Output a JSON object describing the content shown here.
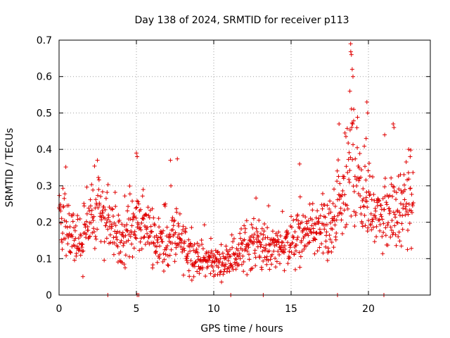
{
  "chart_data": {
    "type": "scatter",
    "title": "Day 138 of 2024, SRMTID for receiver p113",
    "xlabel": "GPS time / hours",
    "ylabel": "SRMTID / TECUs",
    "xlim": [
      0,
      24
    ],
    "ylim": [
      0,
      0.7
    ],
    "xticks": [
      0,
      5,
      10,
      15,
      20
    ],
    "xtick_labels": [
      "0",
      "5",
      "10",
      "15",
      "20"
    ],
    "yticks": [
      0,
      0.1,
      0.2,
      0.3,
      0.4,
      0.5,
      0.6,
      0.7
    ],
    "ytick_labels": [
      "0",
      "0.1",
      "0.2",
      "0.3",
      "0.4",
      "0.5",
      "0.6",
      "0.7"
    ],
    "grid": true,
    "marker": "+",
    "color": "#e00000",
    "point_count": 1100,
    "sample_points_at_zero_x": [
      3.15,
      5.05,
      5.15,
      11.1,
      13.2,
      18.0,
      21.0
    ],
    "trend": {
      "x": [
        0,
        0.5,
        1,
        1.5,
        2,
        2.5,
        3,
        3.5,
        4,
        4.5,
        5,
        5.5,
        6,
        6.5,
        7,
        7.5,
        8,
        8.5,
        9,
        9.5,
        10,
        10.5,
        11,
        11.5,
        12,
        12.5,
        13,
        13.5,
        14,
        14.5,
        15,
        15.5,
        16,
        16.5,
        17,
        17.5,
        18,
        18.5,
        18.9,
        19.3,
        19.7,
        20,
        20.5,
        21,
        21.5,
        22,
        22.5,
        22.9
      ],
      "y": [
        0.22,
        0.19,
        0.15,
        0.14,
        0.2,
        0.22,
        0.22,
        0.18,
        0.14,
        0.16,
        0.19,
        0.2,
        0.17,
        0.15,
        0.14,
        0.16,
        0.14,
        0.11,
        0.1,
        0.1,
        0.09,
        0.09,
        0.1,
        0.11,
        0.13,
        0.15,
        0.13,
        0.12,
        0.13,
        0.14,
        0.14,
        0.15,
        0.17,
        0.18,
        0.17,
        0.16,
        0.22,
        0.28,
        0.38,
        0.33,
        0.26,
        0.24,
        0.22,
        0.22,
        0.23,
        0.22,
        0.24,
        0.25
      ],
      "spread": [
        0.06,
        0.06,
        0.05,
        0.05,
        0.07,
        0.07,
        0.07,
        0.06,
        0.05,
        0.06,
        0.08,
        0.07,
        0.06,
        0.05,
        0.06,
        0.06,
        0.05,
        0.04,
        0.03,
        0.03,
        0.03,
        0.03,
        0.03,
        0.04,
        0.05,
        0.05,
        0.04,
        0.04,
        0.04,
        0.05,
        0.05,
        0.05,
        0.05,
        0.05,
        0.05,
        0.05,
        0.07,
        0.1,
        0.14,
        0.1,
        0.08,
        0.07,
        0.06,
        0.07,
        0.07,
        0.07,
        0.07,
        0.06
      ]
    },
    "peaks": [
      {
        "x": 18.85,
        "y": 0.69
      },
      {
        "x": 18.9,
        "y": 0.66
      },
      {
        "x": 18.95,
        "y": 0.62
      },
      {
        "x": 19.0,
        "y": 0.6
      },
      {
        "x": 18.8,
        "y": 0.56
      },
      {
        "x": 19.05,
        "y": 0.51
      },
      {
        "x": 19.9,
        "y": 0.53
      },
      {
        "x": 19.95,
        "y": 0.5
      },
      {
        "x": 18.1,
        "y": 0.47
      },
      {
        "x": 21.6,
        "y": 0.47
      },
      {
        "x": 21.65,
        "y": 0.46
      },
      {
        "x": 21.05,
        "y": 0.44
      },
      {
        "x": 5.0,
        "y": 0.39
      },
      {
        "x": 5.05,
        "y": 0.38
      },
      {
        "x": 7.2,
        "y": 0.37
      },
      {
        "x": 15.55,
        "y": 0.36
      },
      {
        "x": 22.6,
        "y": 0.4
      },
      {
        "x": 22.7,
        "y": 0.38
      },
      {
        "x": 19.85,
        "y": 0.43
      }
    ]
  }
}
